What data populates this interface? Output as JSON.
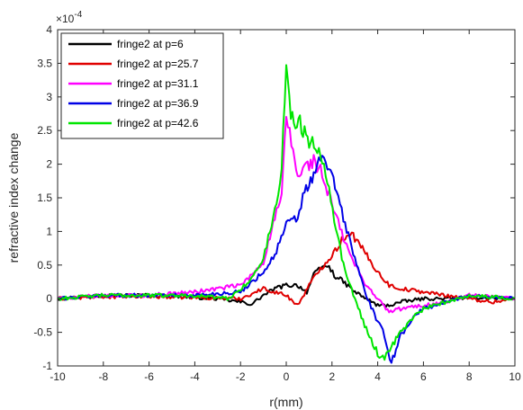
{
  "chart_data": {
    "type": "line",
    "xlabel": "r(mm)",
    "ylabel": "refractive index change",
    "exponent_label": "×10",
    "exponent_power": "-4",
    "xlim": [
      -10,
      10
    ],
    "ylim": [
      -1,
      4
    ],
    "y_scale_factor": "1e-4",
    "xticks": [
      -10,
      -8,
      -6,
      -4,
      -2,
      0,
      2,
      4,
      6,
      8,
      10
    ],
    "yticks": [
      -1,
      -0.5,
      0,
      0.5,
      1,
      1.5,
      2,
      2.5,
      3,
      3.5,
      4
    ],
    "ytick_labels": [
      "-1",
      "-0.5",
      "0",
      "0.5",
      "1",
      "1.5",
      "2",
      "2.5",
      "3",
      "3.5",
      "4"
    ],
    "legend_position": "top-left",
    "grid": false,
    "series": [
      {
        "name": "fringe2 at p=6",
        "color": "#000000",
        "points": [
          [
            -10,
            0
          ],
          [
            -8,
            0.05
          ],
          [
            -6,
            0.05
          ],
          [
            -4,
            0.02
          ],
          [
            -3,
            0
          ],
          [
            -2,
            -0.05
          ],
          [
            -1.5,
            -0.08
          ],
          [
            -1,
            0.05
          ],
          [
            -0.5,
            0.15
          ],
          [
            0,
            0.2
          ],
          [
            0.5,
            0.2
          ],
          [
            0.9,
            0.1
          ],
          [
            1.2,
            0.35
          ],
          [
            1.5,
            0.45
          ],
          [
            1.8,
            0.5
          ],
          [
            2.1,
            0.35
          ],
          [
            2.5,
            0.25
          ],
          [
            3,
            0.1
          ],
          [
            3.5,
            0
          ],
          [
            4,
            -0.1
          ],
          [
            4.5,
            -0.1
          ],
          [
            5,
            -0.05
          ],
          [
            6,
            0
          ],
          [
            7,
            0
          ],
          [
            8,
            0.02
          ],
          [
            10,
            0
          ]
        ]
      },
      {
        "name": "fringe2 at p=25.7",
        "color": "#e00000",
        "points": [
          [
            -10,
            0
          ],
          [
            -8,
            0.03
          ],
          [
            -6,
            0.03
          ],
          [
            -4,
            0.02
          ],
          [
            -2,
            0
          ],
          [
            -1,
            0.15
          ],
          [
            -0.5,
            0.1
          ],
          [
            0,
            0.05
          ],
          [
            0.5,
            -0.1
          ],
          [
            1,
            0.2
          ],
          [
            1.5,
            0.45
          ],
          [
            2,
            0.65
          ],
          [
            2.5,
            0.9
          ],
          [
            2.8,
            1.0
          ],
          [
            3.2,
            0.8
          ],
          [
            3.6,
            0.6
          ],
          [
            4,
            0.4
          ],
          [
            4.5,
            0.2
          ],
          [
            5,
            0.15
          ],
          [
            6,
            0.1
          ],
          [
            7,
            0.05
          ],
          [
            8,
            0
          ],
          [
            9,
            -0.05
          ],
          [
            10,
            0
          ]
        ]
      },
      {
        "name": "fringe2 at p=31.1",
        "color": "#ff00ff",
        "points": [
          [
            -10,
            0
          ],
          [
            -8,
            0.05
          ],
          [
            -6,
            0.05
          ],
          [
            -4,
            0.1
          ],
          [
            -2,
            0.2
          ],
          [
            -1.5,
            0.35
          ],
          [
            -1,
            0.55
          ],
          [
            -0.5,
            1.2
          ],
          [
            -0.2,
            1.5
          ],
          [
            0,
            2.7
          ],
          [
            0.3,
            2.2
          ],
          [
            0.5,
            1.8
          ],
          [
            0.8,
            1.95
          ],
          [
            1.2,
            2.05
          ],
          [
            1.5,
            1.9
          ],
          [
            1.8,
            1.6
          ],
          [
            2.2,
            1.2
          ],
          [
            2.5,
            0.9
          ],
          [
            3,
            0.5
          ],
          [
            3.5,
            0.2
          ],
          [
            4,
            0
          ],
          [
            4.5,
            -0.2
          ],
          [
            5,
            -0.15
          ],
          [
            6,
            -0.1
          ],
          [
            7,
            -0.05
          ],
          [
            8,
            0.05
          ],
          [
            10,
            0
          ]
        ]
      },
      {
        "name": "fringe2 at p=36.9",
        "color": "#0000e6",
        "points": [
          [
            -10,
            0
          ],
          [
            -8,
            0.05
          ],
          [
            -6,
            0.05
          ],
          [
            -4,
            0.05
          ],
          [
            -2,
            0.1
          ],
          [
            -1.5,
            0.25
          ],
          [
            -1,
            0.4
          ],
          [
            -0.5,
            0.65
          ],
          [
            0,
            1.1
          ],
          [
            0.5,
            1.2
          ],
          [
            0.8,
            1.6
          ],
          [
            1.2,
            1.8
          ],
          [
            1.5,
            2.1
          ],
          [
            1.8,
            2.0
          ],
          [
            2.2,
            1.6
          ],
          [
            2.5,
            1.2
          ],
          [
            3,
            0.6
          ],
          [
            3.5,
            0.05
          ],
          [
            4,
            -0.35
          ],
          [
            4.3,
            -0.55
          ],
          [
            4.6,
            -0.95
          ],
          [
            5,
            -0.55
          ],
          [
            5.5,
            -0.3
          ],
          [
            6,
            -0.15
          ],
          [
            7,
            -0.05
          ],
          [
            8,
            0.05
          ],
          [
            10,
            0
          ]
        ]
      },
      {
        "name": "fringe2 at p=42.6",
        "color": "#00e600",
        "points": [
          [
            -10,
            0
          ],
          [
            -8,
            0.05
          ],
          [
            -6,
            0.05
          ],
          [
            -4,
            0.05
          ],
          [
            -2.5,
            0.0
          ],
          [
            -2,
            0.15
          ],
          [
            -1.5,
            0.3
          ],
          [
            -1,
            0.6
          ],
          [
            -0.5,
            1.3
          ],
          [
            -0.2,
            1.9
          ],
          [
            0,
            3.6
          ],
          [
            0.2,
            2.7
          ],
          [
            0.6,
            2.6
          ],
          [
            1,
            2.35
          ],
          [
            1.5,
            2.2
          ],
          [
            1.8,
            1.8
          ],
          [
            2.1,
            1.2
          ],
          [
            2.5,
            0.5
          ],
          [
            3,
            0
          ],
          [
            3.5,
            -0.45
          ],
          [
            4,
            -0.82
          ],
          [
            4.3,
            -0.88
          ],
          [
            4.6,
            -0.7
          ],
          [
            5,
            -0.5
          ],
          [
            5.5,
            -0.3
          ],
          [
            6,
            -0.15
          ],
          [
            7,
            -0.05
          ],
          [
            8,
            0.05
          ],
          [
            10,
            0
          ]
        ]
      }
    ]
  }
}
